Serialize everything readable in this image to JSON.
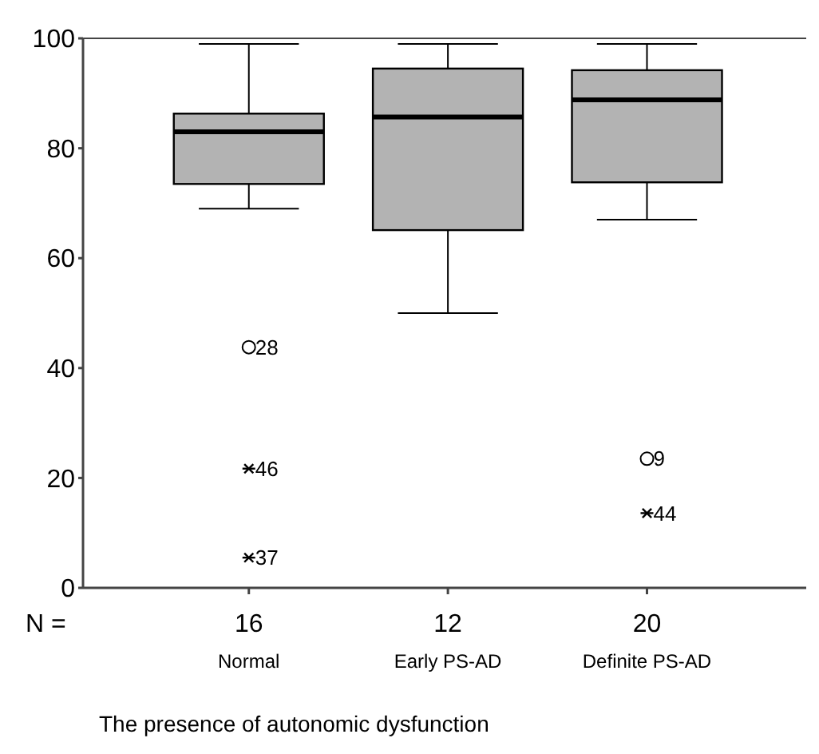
{
  "chart_data": {
    "type": "box",
    "xlabel": "The presence of autonomic  dysfunction",
    "categories": [
      "Normal",
      "Early PS-AD",
      "Definite PS-AD"
    ],
    "ylim": [
      0,
      100
    ],
    "yticks": [
      0,
      20,
      40,
      60,
      80,
      100
    ],
    "series": [
      {
        "color": "#b3b3b3",
        "boxes": [
          {
            "low": 69,
            "q1": 73.5,
            "median": 83,
            "q3": 86.3,
            "high": 99
          },
          {
            "low": 50,
            "q1": 65.1,
            "median": 85.7,
            "q3": 94.5,
            "high": 99
          },
          {
            "low": 67,
            "q1": 73.8,
            "median": 88.8,
            "q3": 94.2,
            "high": 99
          }
        ]
      },
      {
        "type": "scatter",
        "marker": "circle",
        "color": "#000000",
        "x": [
          "Normal",
          "Definite PS-AD"
        ],
        "values": [
          43.8,
          23.5
        ]
      },
      {
        "type": "scatter",
        "marker": "cross",
        "color": "#000000",
        "x": [
          "Normal",
          "Normal",
          "Definite PS-AD"
        ],
        "values": [
          21.7,
          5.5,
          13.6
        ]
      }
    ],
    "annotations": [
      {
        "text": "28",
        "x": "Normal",
        "y": 43.8
      },
      {
        "text": "46",
        "x": "Normal",
        "y": 21.7
      },
      {
        "text": "37",
        "x": "Normal",
        "y": 5.5
      },
      {
        "text": "9",
        "x": "Definite PS-AD",
        "y": 23.5
      },
      {
        "text": "44",
        "x": "Definite PS-AD",
        "y": 13.6
      },
      "N =",
      {
        "text": "16",
        "x": "Normal"
      },
      {
        "text": "12",
        "x": "Early PS-AD"
      },
      {
        "text": "20",
        "x": "Definite PS-AD"
      }
    ]
  }
}
